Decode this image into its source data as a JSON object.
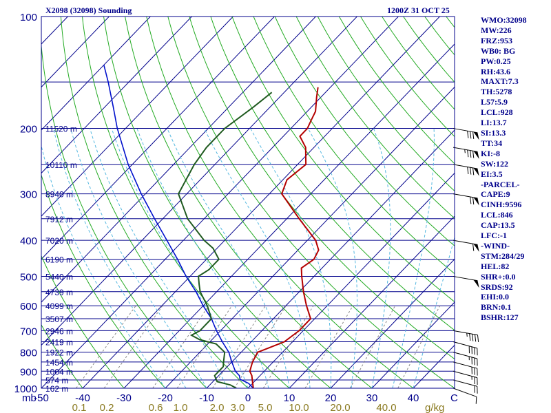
{
  "header": {
    "title": "X2098 (32098) Sounding",
    "time": "1200Z 31 OCT 25"
  },
  "stats": [
    "WMO:32098",
    "MW:226",
    "FRZ:953",
    "WB0: BG",
    "PW:0.25",
    "RH:43.6",
    "MAXT:7.3",
    "TH:5278",
    "L57:5.9",
    "LCL:928",
    "LI:13.7",
    "SI:13.3",
    "TT:34",
    "KI:-8",
    "SW:122",
    "EI:3.5",
    "-PARCEL-",
    "CAPE:9",
    "CINH:9596",
    "LCL:846",
    "CAP:13.5",
    "LFC:-1",
    "-WIND-",
    "STM:284/29",
    "HEL:82",
    "SHR+:0.0",
    "SRDS:92",
    "EHI:0.0",
    "BRN:0.1",
    "BSHR:127"
  ],
  "colors": {
    "frame": "#00008b",
    "isobar": "#00008b",
    "isotherm": "#00008b",
    "dry_adiabat": "#22aa22",
    "moist_adiabat": "#55b8e0",
    "mixing_ratio": "#888888",
    "temperature": "#b40000",
    "dewpoint": "#1f5a1f",
    "parcel": "#0010cc",
    "tick_text": "#00008b",
    "mixing_text": "#8a7a20",
    "barb": "#000000"
  },
  "chart_data": {
    "type": "skew-t",
    "pressure_range_hpa": [
      1000,
      100
    ],
    "temperature_range_c": [
      -50,
      50
    ],
    "pressure_ticks": [
      100,
      200,
      300,
      400,
      500,
      600,
      700,
      800,
      900,
      1000
    ],
    "temperature_ticks": [
      -50,
      -40,
      -30,
      -20,
      -10,
      0,
      10,
      20,
      30,
      40
    ],
    "x_unit_left": "mb",
    "x_unit_right": "C",
    "mixing_ratio_unit": "g/kg",
    "mixing_ratio_labels": [
      "0.1",
      "0.2",
      "0.6",
      "1.0",
      "2.0",
      "3.0",
      "5.0",
      "10.0",
      "20.0",
      "40.0"
    ],
    "height_levels": [
      {
        "p": 200,
        "label": "11520 m"
      },
      {
        "p": 250,
        "label": "10110 m"
      },
      {
        "p": 300,
        "label": "8940 m"
      },
      {
        "p": 350,
        "label": "7912 m"
      },
      {
        "p": 400,
        "label": "7020 m"
      },
      {
        "p": 450,
        "label": "6190 m"
      },
      {
        "p": 500,
        "label": "5440 m"
      },
      {
        "p": 550,
        "label": "4739 m"
      },
      {
        "p": 600,
        "label": "4099 m"
      },
      {
        "p": 650,
        "label": "3507 m"
      },
      {
        "p": 700,
        "label": "2946 m"
      },
      {
        "p": 750,
        "label": "2419 m"
      },
      {
        "p": 800,
        "label": "1922 m"
      },
      {
        "p": 850,
        "label": "1454 m"
      },
      {
        "p": 900,
        "label": "1004 m"
      },
      {
        "p": 950,
        "label": "574 m"
      },
      {
        "p": 1000,
        "label": "162 m"
      }
    ],
    "series": [
      {
        "name": "temperature",
        "points": [
          [
            1000,
            1.3
          ],
          [
            970,
            0
          ],
          [
            925,
            -2
          ],
          [
            900,
            -3.5
          ],
          [
            850,
            -5
          ],
          [
            800,
            -6
          ],
          [
            775,
            -4
          ],
          [
            750,
            -2
          ],
          [
            700,
            -1
          ],
          [
            650,
            -1
          ],
          [
            600,
            -5
          ],
          [
            550,
            -9
          ],
          [
            500,
            -13
          ],
          [
            475,
            -15
          ],
          [
            450,
            -14
          ],
          [
            425,
            -15
          ],
          [
            400,
            -18
          ],
          [
            350,
            -27
          ],
          [
            300,
            -37
          ],
          [
            275,
            -39
          ],
          [
            250,
            -38
          ],
          [
            225,
            -42
          ],
          [
            210,
            -46
          ],
          [
            200,
            -46
          ],
          [
            190,
            -47
          ],
          [
            180,
            -48
          ],
          [
            165,
            -51
          ],
          [
            155,
            -53
          ]
        ]
      },
      {
        "name": "dewpoint",
        "points": [
          [
            1000,
            -2.8
          ],
          [
            980,
            -5
          ],
          [
            960,
            -9
          ],
          [
            925,
            -11
          ],
          [
            900,
            -11
          ],
          [
            875,
            -11
          ],
          [
            850,
            -12
          ],
          [
            800,
            -14
          ],
          [
            760,
            -18
          ],
          [
            740,
            -23
          ],
          [
            720,
            -26
          ],
          [
            700,
            -25
          ],
          [
            650,
            -25
          ],
          [
            600,
            -29
          ],
          [
            550,
            -34
          ],
          [
            525,
            -36
          ],
          [
            500,
            -38
          ],
          [
            480,
            -37
          ],
          [
            450,
            -37
          ],
          [
            420,
            -41
          ],
          [
            400,
            -45
          ],
          [
            350,
            -54
          ],
          [
            300,
            -62
          ],
          [
            250,
            -65
          ],
          [
            225,
            -66
          ],
          [
            200,
            -66
          ],
          [
            175,
            -64
          ],
          [
            160,
            -63
          ]
        ]
      },
      {
        "name": "parcel",
        "points": [
          [
            1000,
            1.3
          ],
          [
            970,
            -1
          ],
          [
            946,
            -4
          ],
          [
            925,
            -5
          ],
          [
            900,
            -7
          ],
          [
            850,
            -10
          ],
          [
            800,
            -13
          ],
          [
            750,
            -17
          ],
          [
            700,
            -21
          ],
          [
            650,
            -25
          ],
          [
            600,
            -30
          ],
          [
            550,
            -35
          ],
          [
            500,
            -41
          ],
          [
            450,
            -47
          ],
          [
            400,
            -54
          ],
          [
            350,
            -62
          ],
          [
            300,
            -71
          ],
          [
            250,
            -81
          ],
          [
            200,
            -92
          ],
          [
            175,
            -98
          ],
          [
            150,
            -105
          ],
          [
            135,
            -110
          ]
        ]
      }
    ],
    "wind_barbs": [
      {
        "p": 1000,
        "dir": 290,
        "spd": 10
      },
      {
        "p": 950,
        "dir": 285,
        "spd": 20
      },
      {
        "p": 900,
        "dir": 285,
        "spd": 25
      },
      {
        "p": 850,
        "dir": 285,
        "spd": 30
      },
      {
        "p": 800,
        "dir": 285,
        "spd": 35
      },
      {
        "p": 750,
        "dir": 285,
        "spd": 40
      },
      {
        "p": 700,
        "dir": 280,
        "spd": 45
      },
      {
        "p": 500,
        "dir": 280,
        "spd": 50
      },
      {
        "p": 400,
        "dir": 280,
        "spd": 60
      },
      {
        "p": 300,
        "dir": 280,
        "spd": 70
      },
      {
        "p": 250,
        "dir": 280,
        "spd": 80
      },
      {
        "p": 225,
        "dir": 280,
        "spd": 85
      },
      {
        "p": 200,
        "dir": 280,
        "spd": 80
      }
    ]
  }
}
